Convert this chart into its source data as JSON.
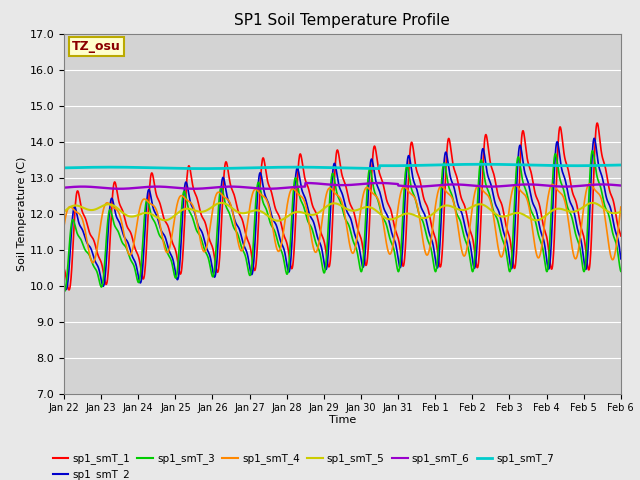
{
  "title": "SP1 Soil Temperature Profile",
  "xlabel": "Time",
  "ylabel": "Soil Temperature (C)",
  "ylim": [
    7.0,
    17.0
  ],
  "yticks": [
    7.0,
    8.0,
    9.0,
    10.0,
    11.0,
    12.0,
    13.0,
    14.0,
    15.0,
    16.0,
    17.0
  ],
  "x_tick_labels": [
    "Jan 22",
    "Jan 23",
    "Jan 24",
    "Jan 25",
    "Jan 26",
    "Jan 27",
    "Jan 28",
    "Jan 29",
    "Jan 30",
    "Jan 31",
    "Feb 1",
    "Feb 2",
    "Feb 3",
    "Feb 4",
    "Feb 5",
    "Feb 6"
  ],
  "series_colors": {
    "sp1_smT_1": "#ff0000",
    "sp1_smT_2": "#0000cc",
    "sp1_smT_3": "#00cc00",
    "sp1_smT_4": "#ff8800",
    "sp1_smT_5": "#cccc00",
    "sp1_smT_6": "#9900cc",
    "sp1_smT_7": "#00cccc"
  },
  "legend_labels": [
    "sp1_smT_1",
    "sp1_smT_2",
    "sp1_smT_3",
    "sp1_smT_4",
    "sp1_smT_5",
    "sp1_smT_6",
    "sp1_smT_7"
  ],
  "tz_label": "TZ_osu",
  "bg_color": "#e8e8e8",
  "plot_bg_color": "#d3d3d3"
}
